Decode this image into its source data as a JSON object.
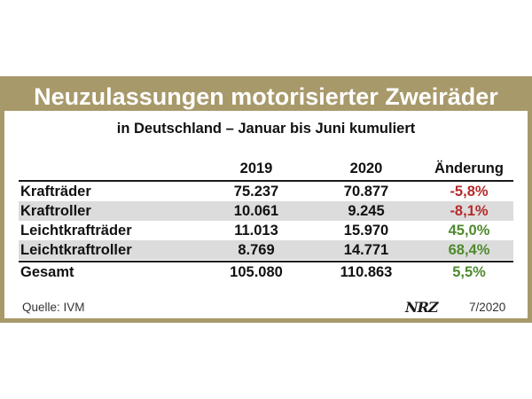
{
  "title": "Neuzulassungen motorisierter Zweiräder",
  "subtitle": "in Deutschland – Januar bis Juni kumuliert",
  "columns": [
    "2019",
    "2020",
    "Änderung"
  ],
  "rows": [
    {
      "label": "Krafträder",
      "v2019": "75.237",
      "v2020": "70.877",
      "change": "-5,8%",
      "trend": "negative"
    },
    {
      "label": "Kraftroller",
      "v2019": "10.061",
      "v2020": "9.245",
      "change": "-8,1%",
      "trend": "negative"
    },
    {
      "label": "Leichtkrafträder",
      "v2019": "11.013",
      "v2020": "15.970",
      "change": "45,0%",
      "trend": "positive"
    },
    {
      "label": "Leichtkraftroller",
      "v2019": "8.769",
      "v2020": "14.771",
      "change": "68,4%",
      "trend": "positive"
    }
  ],
  "total": {
    "label": "Gesamt",
    "v2019": "105.080",
    "v2020": "110.863",
    "change": "5,5%",
    "trend": "positive"
  },
  "source": "Quelle: IVM",
  "logo_text": "NRZ",
  "date": "7/2020",
  "colors": {
    "frame": "#a8996a",
    "negative": "#b52a2a",
    "positive": "#4f8a2e",
    "row_shade": "#dcdcdc"
  }
}
